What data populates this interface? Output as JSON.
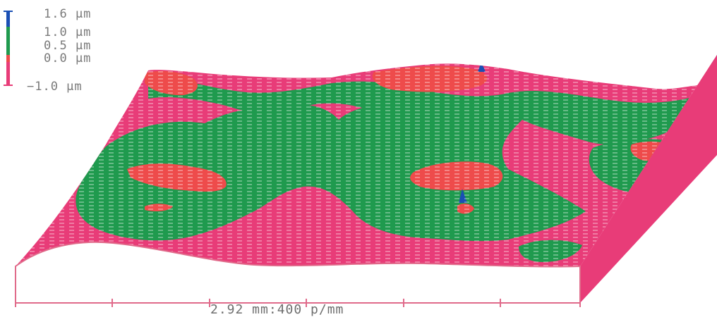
{
  "colors": {
    "blue": "#1a4fb4",
    "green": "#1f9a4e",
    "red": "#ee4b4b",
    "magenta": "#e83c78",
    "axis": "#e06a8a",
    "text": "#777777"
  },
  "legend": {
    "scale_bar": [
      {
        "color": "#1a4fb4",
        "from": 1.6,
        "to": 1.0
      },
      {
        "color": "#1f9a4e",
        "from": 1.0,
        "to": 0.5
      },
      {
        "color": "#ee4b4b",
        "from": 0.5,
        "to": 0.0
      },
      {
        "color": "#e83c78",
        "from": 0.0,
        "to": -1.0
      }
    ],
    "labels": [
      {
        "text": "1.6 μm"
      },
      {
        "text": "1.0 μm"
      },
      {
        "text": "0.5 μm"
      },
      {
        "text": "0.0 μm"
      },
      {
        "text": "−1.0 μm"
      }
    ]
  },
  "axis": {
    "label": "2.92 mm:400 p/mm"
  }
}
